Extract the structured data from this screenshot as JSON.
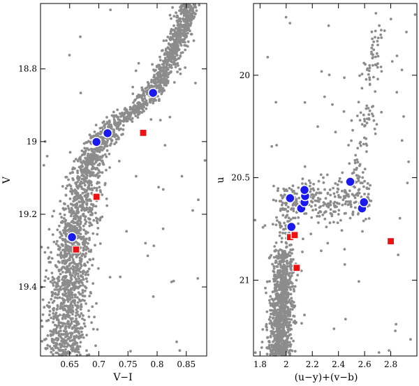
{
  "chart_data": [
    {
      "type": "scatter",
      "panel": "left",
      "title": "",
      "xlabel": "V−I",
      "ylabel": "V",
      "xlim": [
        0.6,
        0.885
      ],
      "ylim": [
        19.59,
        18.62
      ],
      "y_inverted": true,
      "x_ticks": [
        "0.65",
        "0.7",
        "0.75",
        "0.8",
        "0.85"
      ],
      "x_tick_values": [
        0.65,
        0.7,
        0.75,
        0.8,
        0.85
      ],
      "y_ticks": [
        "18.8",
        "19",
        "19.2",
        "19.4"
      ],
      "y_tick_values": [
        18.8,
        19.0,
        19.2,
        19.4
      ],
      "background": {
        "name": "all stars (grey dots)",
        "color": "#8c8c8c",
        "ridge_line": [
          [
            0.64,
            19.59
          ],
          [
            0.645,
            19.45
          ],
          [
            0.655,
            19.3
          ],
          [
            0.67,
            19.15
          ],
          [
            0.69,
            19.03
          ],
          [
            0.72,
            18.96
          ],
          [
            0.77,
            18.9
          ],
          [
            0.81,
            18.82
          ],
          [
            0.835,
            18.72
          ],
          [
            0.855,
            18.63
          ]
        ],
        "approx_count": 2500
      },
      "series": [
        {
          "name": "blue circles",
          "color": "#1a1aee",
          "marker": "circle",
          "points": [
            [
              0.793,
              18.866
            ],
            [
              0.715,
              18.977
            ],
            [
              0.696,
              19.001
            ],
            [
              0.654,
              19.263
            ]
          ]
        },
        {
          "name": "red squares",
          "color": "#ee1111",
          "marker": "square",
          "points": [
            [
              0.776,
              18.976
            ],
            [
              0.696,
              19.152
            ],
            [
              0.661,
              19.297
            ]
          ]
        }
      ]
    },
    {
      "type": "scatter",
      "panel": "right",
      "title": "",
      "xlabel": "(u−y)+(v−b)",
      "ylabel": "u",
      "xlim": [
        1.75,
        3.0
      ],
      "ylim": [
        21.37,
        19.65
      ],
      "y_inverted": true,
      "x_ticks": [
        "1.8",
        "2",
        "2.2",
        "2.4",
        "2.6",
        "2.8"
      ],
      "x_tick_values": [
        1.8,
        2.0,
        2.2,
        2.4,
        2.6,
        2.8
      ],
      "y_ticks": [
        "20",
        "20.5",
        "21"
      ],
      "y_tick_values": [
        20.0,
        20.5,
        21.0
      ],
      "background": {
        "name": "all stars (grey dots)",
        "color": "#8c8c8c",
        "main_sequence_x_range": [
          1.85,
          2.1
        ],
        "main_sequence_u_range": [
          20.85,
          21.37
        ],
        "subgiant_branch_u_range": [
          20.55,
          20.7
        ],
        "giant_branch": [
          [
            2.5,
            20.6
          ],
          [
            2.58,
            20.35
          ],
          [
            2.65,
            20.0
          ],
          [
            2.7,
            19.75
          ]
        ],
        "approx_count": 1400
      },
      "series": [
        {
          "name": "blue circles",
          "color": "#1a1aee",
          "marker": "circle",
          "points": [
            [
              2.03,
              20.6
            ],
            [
              2.115,
              20.65
            ],
            [
              2.14,
              20.62
            ],
            [
              2.145,
              20.59
            ],
            [
              2.14,
              20.56
            ],
            [
              2.49,
              20.52
            ],
            [
              2.58,
              20.65
            ],
            [
              2.595,
              20.62
            ],
            [
              2.04,
              20.74
            ]
          ]
        },
        {
          "name": "red squares",
          "color": "#ee1111",
          "marker": "square",
          "points": [
            [
              2.03,
              20.79
            ],
            [
              2.065,
              20.78
            ],
            [
              2.08,
              20.94
            ],
            [
              2.8,
              20.81
            ]
          ]
        }
      ]
    }
  ]
}
